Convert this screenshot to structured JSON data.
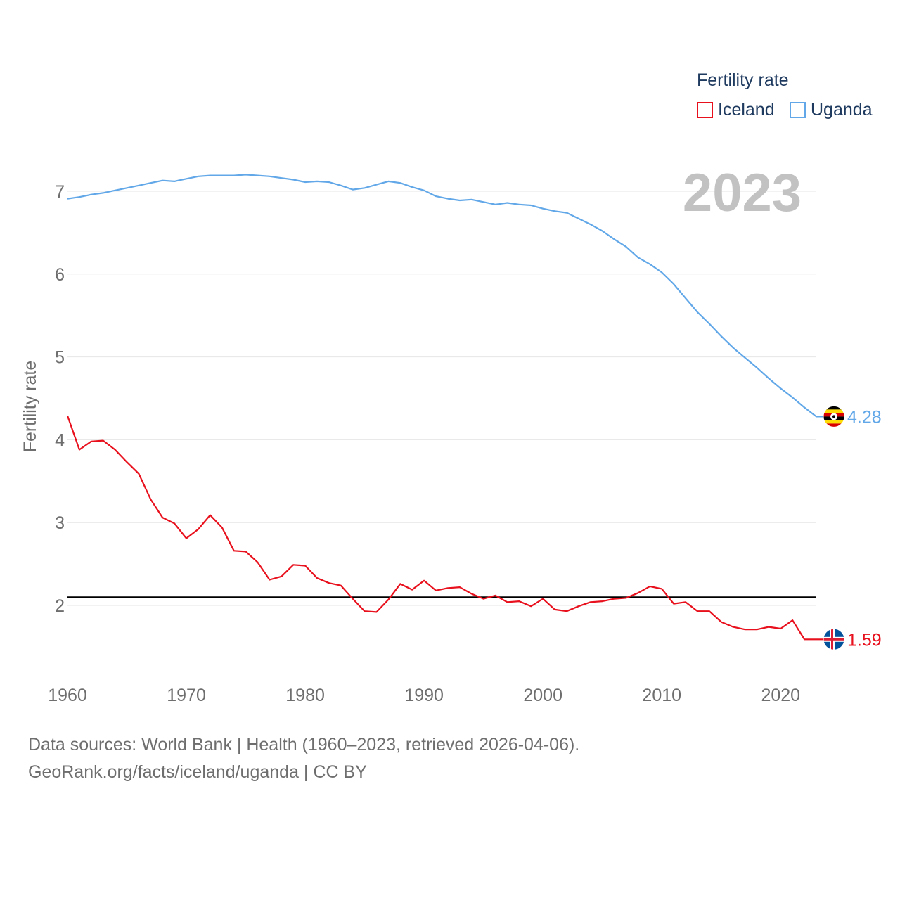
{
  "legend": {
    "title": "Fertility rate",
    "items": [
      {
        "label": "Iceland",
        "color": "#e8101c"
      },
      {
        "label": "Uganda",
        "color": "#62a8e8"
      }
    ]
  },
  "footer": {
    "line1": "Data sources: World Bank | Health (1960–2023, retrieved 2026-04-06).",
    "line2": "GeoRank.org/facts/iceland/uganda | CC BY"
  },
  "chart_data": {
    "type": "line",
    "year_label": "2023",
    "ylabel": "Fertility rate",
    "xlabel": "",
    "xlim": [
      1960,
      2023
    ],
    "ylim": [
      1.3,
      7.5
    ],
    "x_ticks": [
      "1960",
      "1970",
      "1980",
      "1990",
      "2000",
      "2010",
      "2020"
    ],
    "y_ticks": [
      "2",
      "3",
      "4",
      "5",
      "6",
      "7"
    ],
    "reference_line": 2.1,
    "x": [
      1960,
      1961,
      1962,
      1963,
      1964,
      1965,
      1966,
      1967,
      1968,
      1969,
      1970,
      1971,
      1972,
      1973,
      1974,
      1975,
      1976,
      1977,
      1978,
      1979,
      1980,
      1981,
      1982,
      1983,
      1984,
      1985,
      1986,
      1987,
      1988,
      1989,
      1990,
      1991,
      1992,
      1993,
      1994,
      1995,
      1996,
      1997,
      1998,
      1999,
      2000,
      2001,
      2002,
      2003,
      2004,
      2005,
      2006,
      2007,
      2008,
      2009,
      2010,
      2011,
      2012,
      2013,
      2014,
      2015,
      2016,
      2017,
      2018,
      2019,
      2020,
      2021,
      2022,
      2023
    ],
    "series": [
      {
        "name": "Iceland",
        "color": "#e8101c",
        "end_label": "1.59",
        "values": [
          4.29,
          3.88,
          3.98,
          3.99,
          3.88,
          3.73,
          3.59,
          3.28,
          3.06,
          2.99,
          2.81,
          2.92,
          3.09,
          2.94,
          2.66,
          2.65,
          2.52,
          2.31,
          2.35,
          2.49,
          2.48,
          2.33,
          2.27,
          2.24,
          2.08,
          1.93,
          1.92,
          2.07,
          2.26,
          2.19,
          2.3,
          2.18,
          2.21,
          2.22,
          2.14,
          2.08,
          2.12,
          2.04,
          2.05,
          1.99,
          2.08,
          1.95,
          1.93,
          1.99,
          2.04,
          2.05,
          2.08,
          2.09,
          2.15,
          2.23,
          2.2,
          2.02,
          2.04,
          1.93,
          1.93,
          1.8,
          1.74,
          1.71,
          1.71,
          1.74,
          1.72,
          1.82,
          1.59,
          1.59
        ]
      },
      {
        "name": "Uganda",
        "color": "#62a8e8",
        "end_label": "4.28",
        "values": [
          6.91,
          6.93,
          6.96,
          6.98,
          7.01,
          7.04,
          7.07,
          7.1,
          7.13,
          7.12,
          7.15,
          7.18,
          7.19,
          7.19,
          7.19,
          7.2,
          7.19,
          7.18,
          7.16,
          7.14,
          7.11,
          7.12,
          7.11,
          7.07,
          7.02,
          7.04,
          7.08,
          7.12,
          7.1,
          7.05,
          7.01,
          6.94,
          6.91,
          6.89,
          6.9,
          6.87,
          6.84,
          6.86,
          6.84,
          6.83,
          6.79,
          6.76,
          6.74,
          6.67,
          6.6,
          6.52,
          6.42,
          6.33,
          6.2,
          6.12,
          6.02,
          5.88,
          5.71,
          5.54,
          5.4,
          5.25,
          5.11,
          4.99,
          4.87,
          4.74,
          4.62,
          4.51,
          4.39,
          4.28
        ]
      }
    ]
  }
}
